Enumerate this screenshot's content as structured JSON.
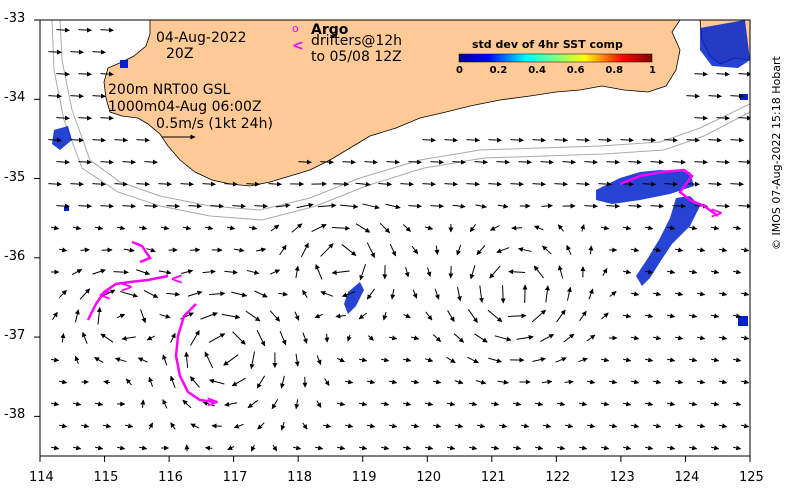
{
  "map": {
    "lon_range": [
      114,
      125
    ],
    "lat_range": [
      -38.5,
      -33
    ],
    "lon_ticks": [
      "114",
      "115",
      "116",
      "117",
      "118",
      "119",
      "120",
      "121",
      "122",
      "123",
      "124",
      "125"
    ],
    "lat_ticks": [
      "-33",
      "-34",
      "-35",
      "-36",
      "-37",
      "-38"
    ],
    "land_color": "#ffca96",
    "drifter_color": "#ff00ff"
  },
  "annotations": {
    "date": "04-Aug-2022",
    "time": "20Z",
    "contour_line1": "200m  NRT00 GSL",
    "contour_line2": "1000m04-Aug 06:00Z",
    "scale_label": "0.5m/s (1kt 24h)",
    "argo_symbol": "o",
    "argo_label": "Argo",
    "drifter_symbol": "<",
    "drifter_label1": "drifters@12h",
    "drifter_label2": "to 05/08 12Z"
  },
  "colorbar": {
    "title": "std dev of 4hr SST comp",
    "ticks": [
      "0",
      "0.2",
      "0.4",
      "0.6",
      "0.8",
      "1"
    ]
  },
  "credit": "© IMOS 07-Aug-2022 15:18 Hobart"
}
